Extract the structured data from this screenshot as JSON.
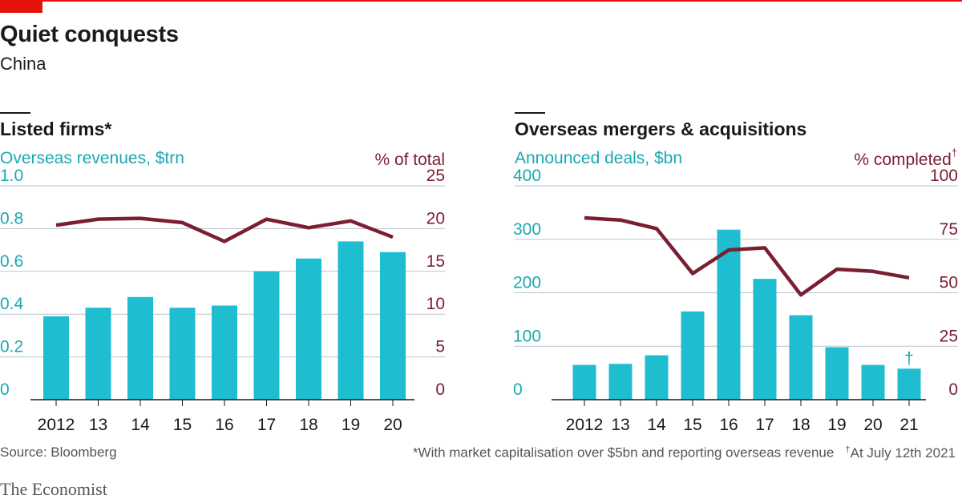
{
  "header": {
    "title": "Quiet conquests",
    "subtitle": "China"
  },
  "panels": {
    "left": {
      "title": "Listed firms*",
      "left_axis_label": "Overseas revenues, $trn",
      "right_axis_label": "% of total",
      "right_axis_mark": ""
    },
    "right": {
      "title": "Overseas mergers & acquisitions",
      "left_axis_label": "Announced deals, $bn",
      "right_axis_label": "% completed",
      "right_axis_mark": "†"
    }
  },
  "footer": {
    "source": "Source: Bloomberg",
    "note1": "*With market capitalisation over $5bn and reporting overseas revenue",
    "note2_mark": "†",
    "note2": "At July 12th 2021",
    "brand": "The Economist"
  },
  "colors": {
    "bar": "#1ebdcf",
    "line": "#7a1e32",
    "left_axis_text": "#1ba8b4",
    "right_axis_text": "#7a1e32",
    "brand_red": "#e3120b"
  },
  "chart_data": [
    {
      "type": "bar",
      "title": "Listed firms*",
      "categories": [
        "2012",
        "13",
        "14",
        "15",
        "16",
        "17",
        "18",
        "19",
        "20"
      ],
      "series": [
        {
          "values": [
            0.39,
            0.43,
            0.48,
            0.43,
            0.44,
            0.6,
            0.66,
            0.74,
            0.69
          ]
        }
      ],
      "ylim": [
        0,
        1.0
      ],
      "yticks": [
        "0",
        "0.2",
        "0.4",
        "0.6",
        "0.8",
        "1.0"
      ],
      "line_series": [
        {
          "values": [
            20.4,
            21.1,
            21.2,
            20.7,
            18.5,
            21.1,
            20.1,
            20.9,
            19.0
          ]
        }
      ],
      "y2lim": [
        0,
        25
      ],
      "y2ticks": [
        "0",
        "5",
        "10",
        "15",
        "20",
        "25"
      ],
      "grid": true
    },
    {
      "type": "bar",
      "title": "Overseas mergers & acquisitions",
      "categories": [
        "2012",
        "13",
        "14",
        "15",
        "16",
        "17",
        "18",
        "19",
        "20",
        "21"
      ],
      "series": [
        {
          "values": [
            65,
            67,
            83,
            165,
            318,
            226,
            158,
            98,
            65,
            58
          ]
        }
      ],
      "ylim": [
        0,
        400
      ],
      "yticks": [
        "0",
        "100",
        "200",
        "300",
        "400"
      ],
      "line_series": [
        {
          "values": [
            85,
            84,
            80,
            59,
            70,
            71,
            49,
            61,
            60,
            57
          ]
        }
      ],
      "y2lim": [
        0,
        100
      ],
      "y2ticks": [
        "0",
        "25",
        "50",
        "75",
        "100"
      ],
      "bar_annotation": {
        "category": "21",
        "text": "†"
      },
      "grid": true
    }
  ]
}
